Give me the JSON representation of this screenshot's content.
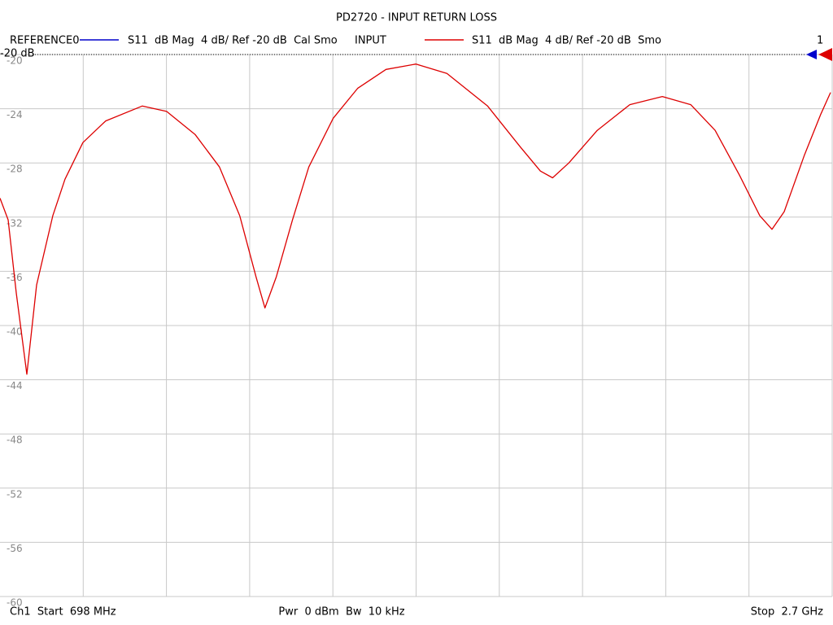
{
  "chart_data": {
    "type": "line",
    "title": "PD2720 - INPUT RETURN LOSS",
    "legend": [
      {
        "name": "REFERENCE0",
        "color": "#0000cc",
        "label": "S11  dB Mag  4 dB/ Ref -20 dB  Cal Smo"
      },
      {
        "name": "INPUT",
        "color": "#dd0000",
        "label": "S11  dB Mag  4 dB/ Ref -20 dB  Smo"
      }
    ],
    "reference_label": "-20 dB",
    "reference_level": -20,
    "channel_marker": "1",
    "footer_left": "Ch1  Start  698 MHz",
    "footer_center": "Pwr  0 dBm  Bw  10 kHz",
    "footer_right": "Stop  2.7 GHz",
    "x": [
      698,
      717.6,
      737.1,
      762.5,
      786,
      825.1,
      854.4,
      897.4,
      952.2,
      1040.1,
      1098.8,
      1167.2,
      1225.9,
      1274.7,
      1313.8,
      1335.3,
      1362.7,
      1401.8,
      1440.9,
      1499.5,
      1558.2,
      1626.6,
      1698.9,
      1773.2,
      1871,
      1949.2,
      1998.1,
      2027.4,
      2066.5,
      2134.9,
      2213.1,
      2291.3,
      2359.7,
      2418.4,
      2477,
      2525.9,
      2555.2,
      2584.6,
      2633.5,
      2672.6,
      2696.1
    ],
    "series": [
      {
        "name": "INPUT",
        "color": "#dd0000",
        "values": [
          -30.6,
          -32.2,
          -37.6,
          -43.6,
          -37.0,
          -31.9,
          -29.2,
          -26.5,
          -24.9,
          -23.8,
          -24.2,
          -25.9,
          -28.3,
          -31.9,
          -36.4,
          -38.7,
          -36.4,
          -32.2,
          -28.3,
          -24.7,
          -22.5,
          -21.1,
          -20.7,
          -21.4,
          -23.8,
          -26.8,
          -28.6,
          -29.1,
          -28.0,
          -25.6,
          -23.7,
          -23.1,
          -23.7,
          -25.6,
          -28.9,
          -31.9,
          -32.9,
          -31.6,
          -27.4,
          -24.4,
          -22.8
        ]
      }
    ],
    "xlim": [
      698,
      2700
    ],
    "x_divisions": 10,
    "ylim": [
      -60,
      -20
    ],
    "yticks": [
      -20,
      -24,
      -28,
      -32,
      -36,
      -40,
      -44,
      -48,
      -52,
      -56,
      -60
    ],
    "grid": true
  }
}
